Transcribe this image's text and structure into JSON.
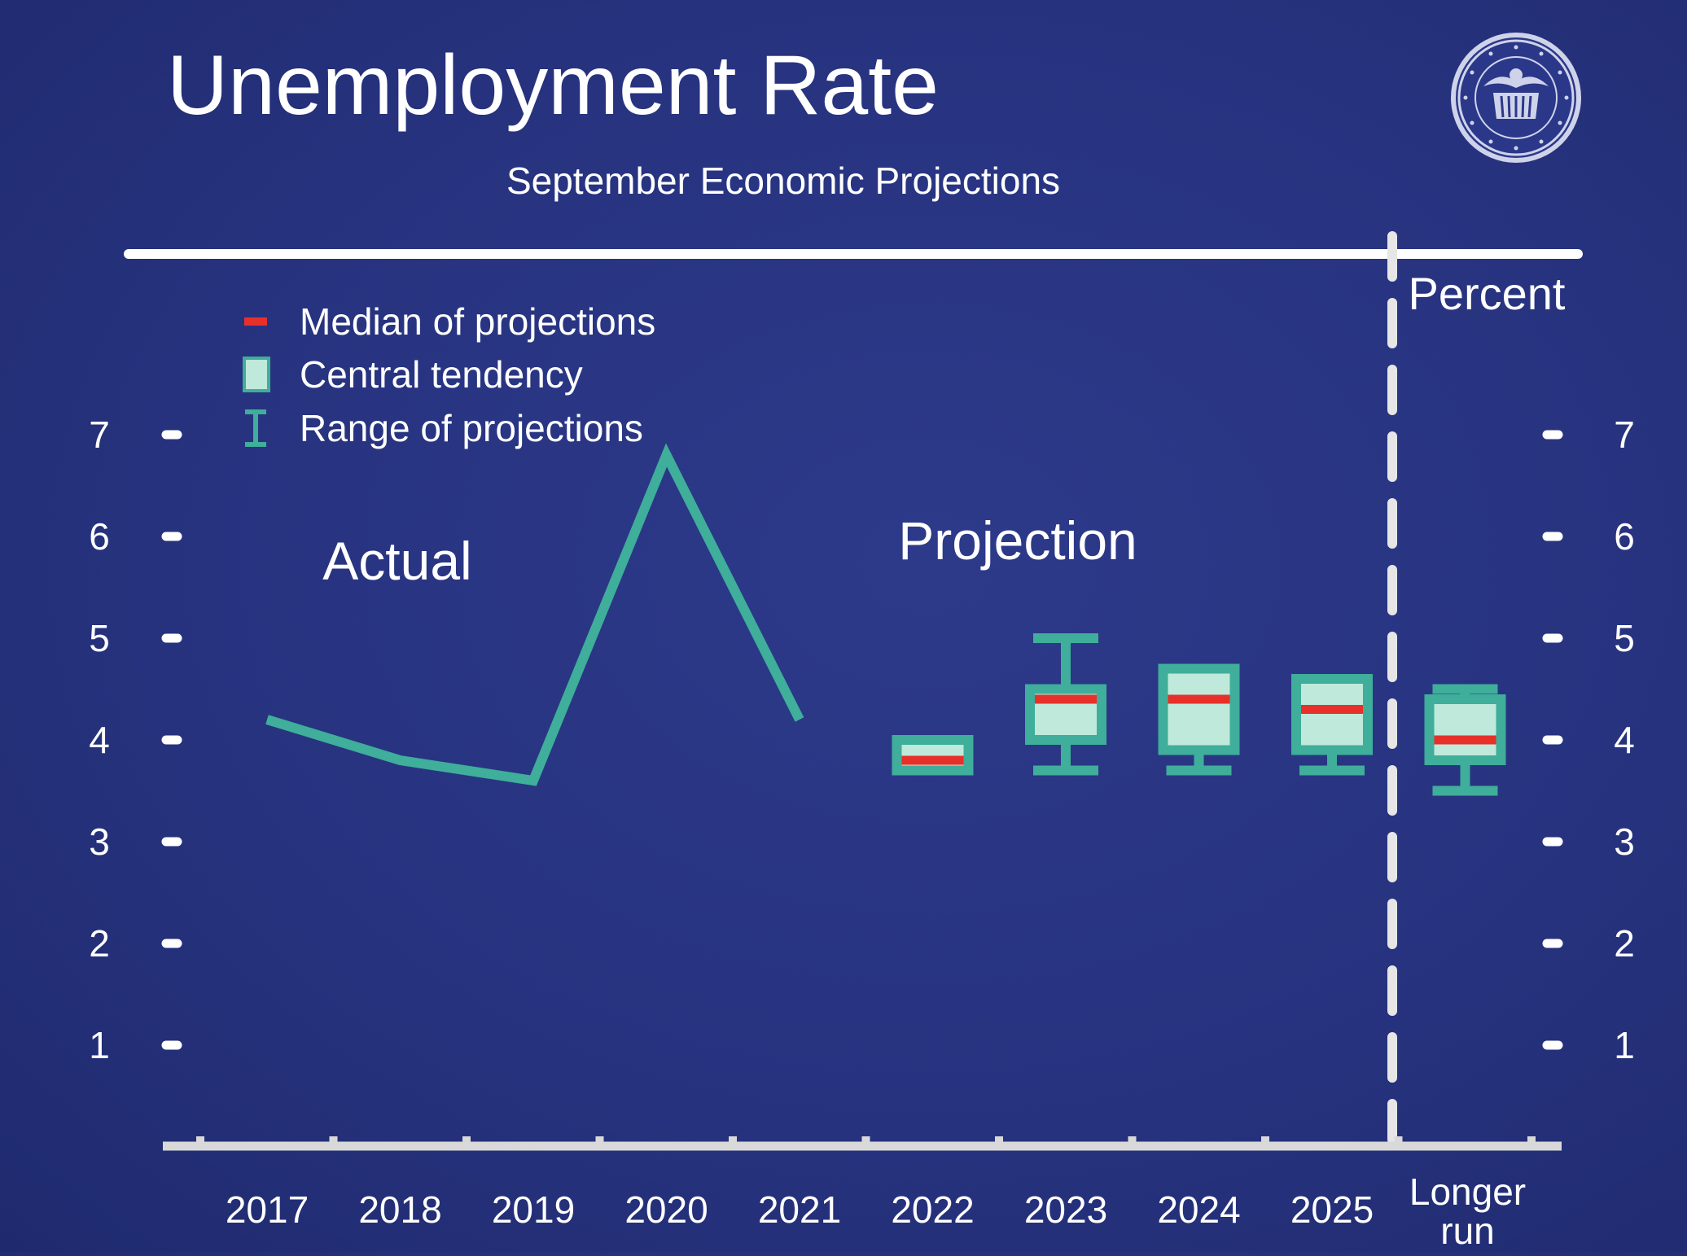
{
  "chart_data": {
    "type": "line",
    "title": "Unemployment Rate",
    "subtitle": "September Economic Projections",
    "unit_label": "Percent",
    "section_labels": {
      "actual": "Actual",
      "projection": "Projection"
    },
    "y_ticks": [
      "1",
      "2",
      "3",
      "4",
      "5",
      "6",
      "7"
    ],
    "ylim": [
      0,
      7.6
    ],
    "x_categories": [
      "2017",
      "2018",
      "2019",
      "2020",
      "2021",
      "2022",
      "2023",
      "2024",
      "2025",
      "Longer run"
    ],
    "legend": {
      "placement": "top-left",
      "items": [
        {
          "label": "Median of projections",
          "kind": "median"
        },
        {
          "label": "Central tendency",
          "kind": "central"
        },
        {
          "label": "Range of projections",
          "kind": "range"
        }
      ]
    },
    "actual": {
      "x": [
        "2017",
        "2018",
        "2019",
        "2020",
        "2021"
      ],
      "values": [
        4.2,
        3.8,
        3.6,
        6.8,
        4.2
      ]
    },
    "projections": [
      {
        "x": "2022",
        "median": 3.8,
        "central": [
          3.7,
          4.0
        ],
        "range": [
          3.7,
          4.0
        ]
      },
      {
        "x": "2023",
        "median": 4.4,
        "central": [
          4.0,
          4.5
        ],
        "range": [
          3.7,
          5.0
        ]
      },
      {
        "x": "2024",
        "median": 4.4,
        "central": [
          3.9,
          4.7
        ],
        "range": [
          3.7,
          4.7
        ]
      },
      {
        "x": "2025",
        "median": 4.3,
        "central": [
          3.9,
          4.6
        ],
        "range": [
          3.7,
          4.6
        ]
      },
      {
        "x": "Longer run",
        "median": 4.0,
        "central": [
          3.8,
          4.4
        ],
        "range": [
          3.5,
          4.5
        ]
      }
    ],
    "colors": {
      "background": "#27337f",
      "series": "#3fae9a",
      "central_fill": "#bfe9da",
      "median": "#e8302a",
      "axis": "#d9d9d9",
      "text": "#ffffff"
    }
  }
}
